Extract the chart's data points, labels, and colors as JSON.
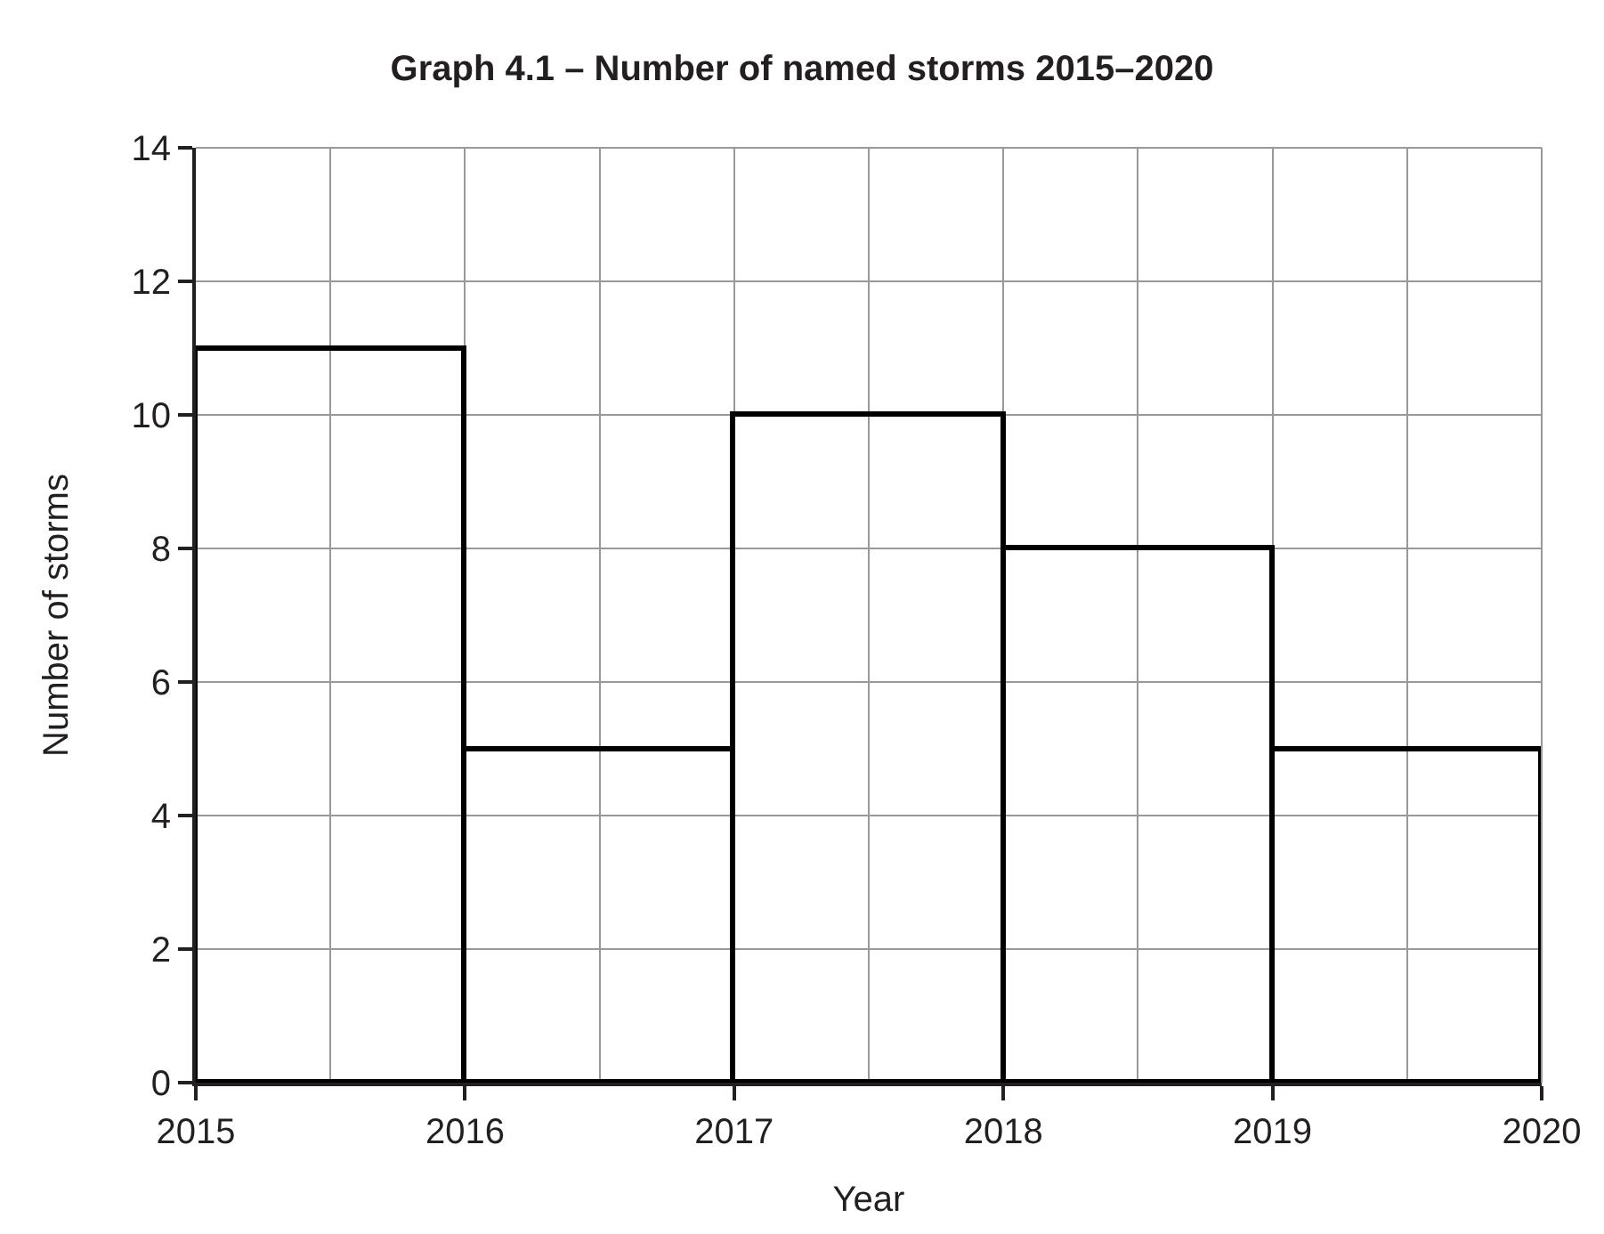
{
  "chart_data": {
    "type": "histogram",
    "title": "Graph 4.1 – Number of named storms 2015–2020",
    "xlabel": "Year",
    "ylabel": "Number of storms",
    "bins": [
      2015,
      2016,
      2017,
      2018,
      2019,
      2020
    ],
    "values": [
      11,
      5,
      10,
      8,
      5
    ],
    "color": "#000000",
    "xlim": [
      2015,
      2020
    ],
    "xticks": [
      2015,
      2016,
      2017,
      2018,
      2019,
      2020
    ],
    "ylim": [
      0,
      14
    ],
    "yticks": [
      0,
      2,
      4,
      6,
      8,
      10,
      12,
      14
    ],
    "grid": true,
    "legend": false
  }
}
